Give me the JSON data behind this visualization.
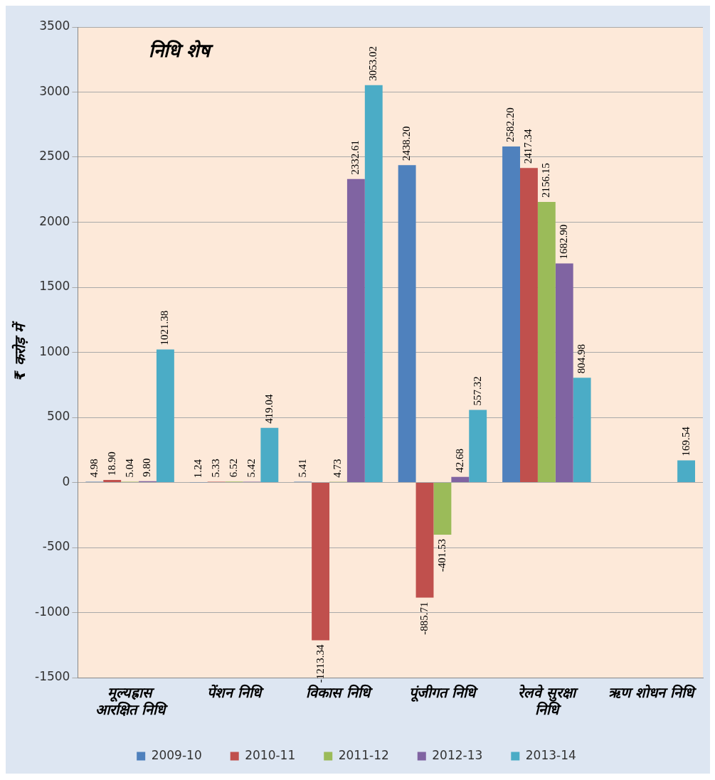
{
  "chart_data": {
    "type": "bar",
    "title": "निधि शेष",
    "ylabel": "₹ करोड़ में",
    "categories": [
      "मूल्यह्रास आरक्षित निधि",
      "पेंशन निधि",
      "विकास निधि",
      "पूंजीगत निधि",
      "रेलवे सुरक्षा निधि",
      "ऋण शोधन निधि"
    ],
    "series": [
      {
        "name": "2009-10",
        "color": "#4f81bd",
        "values": [
          4.98,
          1.24,
          5.41,
          2438.2,
          2582.2,
          null
        ],
        "value_labels": [
          "4.98",
          "1.24",
          "5.41",
          "2438.20",
          "2582.20",
          null
        ]
      },
      {
        "name": "2010-11",
        "color": "#c0504d",
        "values": [
          18.9,
          5.33,
          -1213.34,
          -885.71,
          2417.34,
          null
        ],
        "value_labels": [
          "18.90",
          "5.33",
          "-1213.34",
          "-885.71",
          "2417.34",
          null
        ]
      },
      {
        "name": "2011-12",
        "color": "#9bbb59",
        "values": [
          5.04,
          6.52,
          4.73,
          -401.53,
          2156.15,
          null
        ],
        "value_labels": [
          "5.04",
          "6.52",
          "4.73",
          "-401.53",
          "2156.15",
          null
        ]
      },
      {
        "name": "2012-13",
        "color": "#8064a2",
        "values": [
          9.8,
          5.42,
          2332.61,
          42.68,
          1682.9,
          null
        ],
        "value_labels": [
          "9.80",
          "5.42",
          "2332.61",
          "42.68",
          "1682.90",
          null
        ]
      },
      {
        "name": "2013-14",
        "color": "#4bacc6",
        "values": [
          1021.38,
          419.04,
          3053.02,
          557.32,
          804.98,
          169.54
        ],
        "value_labels": [
          "1021.38",
          "419.04",
          "3053.02",
          "557.32",
          "804.98",
          "169.54"
        ]
      }
    ],
    "ylim": [
      -1500,
      3500
    ],
    "yticks": [
      -1500,
      -1000,
      -500,
      0,
      500,
      1000,
      1500,
      2000,
      2500,
      3000,
      3500
    ],
    "grid": "y",
    "legend": "bottom"
  }
}
